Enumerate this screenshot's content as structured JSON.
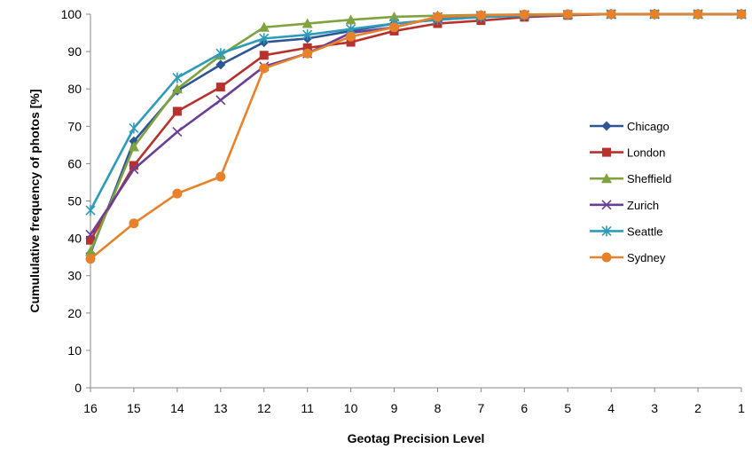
{
  "chart_data": {
    "type": "line",
    "title": "",
    "xlabel": "Geotag Precision Level",
    "ylabel": "Cumululative frequency of photos [%]",
    "categories": [
      "16",
      "15",
      "14",
      "13",
      "12",
      "11",
      "10",
      "9",
      "8",
      "7",
      "6",
      "5",
      "4",
      "3",
      "2",
      "1"
    ],
    "ylim": [
      0,
      100
    ],
    "yticks": [
      0,
      10,
      20,
      30,
      40,
      50,
      60,
      70,
      80,
      90,
      100
    ],
    "grid": false,
    "legend": "right",
    "series": [
      {
        "name": "Chicago",
        "color": "#2f5597",
        "marker": "diamond",
        "values": [
          36,
          66,
          79.5,
          86.5,
          92.5,
          93.5,
          95.5,
          97.5,
          98.5,
          99.3,
          99.7,
          99.9,
          100,
          100,
          100,
          100
        ]
      },
      {
        "name": "London",
        "color": "#b7322c",
        "marker": "square",
        "values": [
          39.5,
          59.5,
          74,
          80.5,
          89,
          91,
          92.5,
          95.5,
          97.5,
          98.3,
          99.2,
          99.7,
          100,
          100,
          100,
          100
        ]
      },
      {
        "name": "Sheffield",
        "color": "#7ea33f",
        "marker": "triangle",
        "values": [
          36.5,
          64.5,
          80,
          89,
          96.5,
          97.5,
          98.5,
          99.3,
          99.6,
          99.8,
          99.9,
          100,
          100,
          100,
          100,
          100
        ]
      },
      {
        "name": "Zurich",
        "color": "#6a3f96",
        "marker": "x",
        "values": [
          41,
          58.5,
          68.5,
          77,
          86,
          89.5,
          95,
          96.5,
          99.2,
          99.6,
          99.8,
          99.9,
          100,
          100,
          100,
          100
        ]
      },
      {
        "name": "Seattle",
        "color": "#2e9bb8",
        "marker": "star",
        "values": [
          47.5,
          69.5,
          83,
          89.5,
          93.5,
          94.5,
          96,
          97.5,
          98.5,
          99.2,
          99.6,
          99.9,
          100,
          100,
          100,
          100
        ]
      },
      {
        "name": "Sydney",
        "color": "#e8822a",
        "marker": "circle",
        "values": [
          34.5,
          44,
          52,
          56.5,
          85.5,
          89.5,
          94,
          96.5,
          99.3,
          99.7,
          99.9,
          100,
          100,
          100,
          100,
          100
        ]
      }
    ]
  }
}
